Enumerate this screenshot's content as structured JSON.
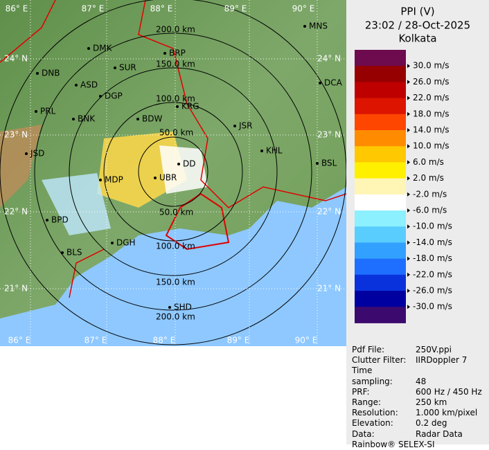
{
  "header": {
    "title": "PPI (V)",
    "time": "23:02 / 28-Oct-2025",
    "station": "Kolkata"
  },
  "legend": {
    "labels": [
      "30.0 m/s",
      "26.0 m/s",
      "22.0 m/s",
      "18.0 m/s",
      "14.0 m/s",
      "10.0 m/s",
      "6.0 m/s",
      "2.0 m/s",
      "-2.0 m/s",
      "-6.0 m/s",
      "-10.0 m/s",
      "-14.0 m/s",
      "-18.0 m/s",
      "-22.0 m/s",
      "-26.0 m/s",
      "-30.0 m/s"
    ],
    "colors": [
      "#6e0a4e",
      "#960000",
      "#be0000",
      "#dc1400",
      "#ff4600",
      "#ff8c00",
      "#ffc800",
      "#fff000",
      "#fff5b4",
      "#ffffff",
      "#8cf0ff",
      "#5acdff",
      "#32a0ff",
      "#1e6eff",
      "#0a32dc",
      "#0000a0",
      "#3c0a6e"
    ]
  },
  "info": [
    [
      "Pdf File:",
      "250V.ppi"
    ],
    [
      "Clutter Filter:",
      "IIRDoppler 7"
    ],
    [
      "Time sampling:",
      "48"
    ],
    [
      "PRF:",
      "600 Hz / 450 Hz"
    ],
    [
      "Range:",
      "250 km"
    ],
    [
      "Resolution:",
      "1.000 km/pixel"
    ],
    [
      "Elevation:",
      "0.2 deg"
    ],
    [
      "Data:",
      "Radar Data"
    ]
  ],
  "footer": "Rainbow® SELEX-SI",
  "map": {
    "lon_labels": [
      "86° E",
      "87° E",
      "88° E",
      "89° E",
      "90° E"
    ],
    "lat_labels": [
      "24° N",
      "23° N",
      "22° N",
      "21° N"
    ],
    "ring_labels": [
      "50.0 km",
      "100.0 km",
      "150.0 km",
      "200.0 km"
    ],
    "cities": [
      "DMK",
      "MNS",
      "BRP",
      "SUR",
      "DNB",
      "ASD",
      "DGP",
      "DCA",
      "KRG",
      "PRL",
      "BNK",
      "BDW",
      "JSR",
      "JSD",
      "KHL",
      "DD",
      "MDP",
      "UBR",
      "BSL",
      "BPD",
      "BLS",
      "DGH",
      "SHD"
    ]
  }
}
